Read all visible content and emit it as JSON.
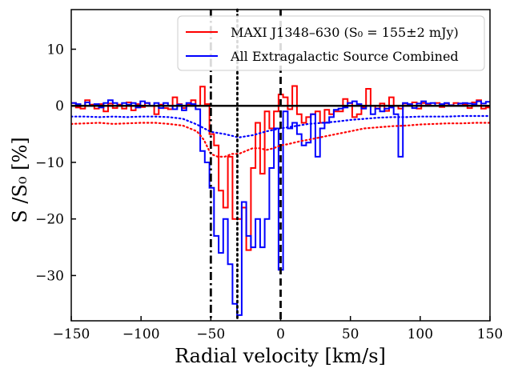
{
  "chart_data": {
    "type": "line",
    "step": true,
    "xlabel": "Radial velocity [km/s]",
    "ylabel": "S /S₀ [%]",
    "xlim": [
      -150,
      150
    ],
    "ylim": [
      -38,
      17
    ],
    "xticks": [
      -150,
      -100,
      -50,
      0,
      50,
      100,
      150
    ],
    "xtick_labels": [
      "−150",
      "−100",
      "−50",
      "0",
      "50",
      "100",
      "150"
    ],
    "yticks": [
      10,
      0,
      -10,
      -20,
      -30
    ],
    "ytick_labels": [
      "10",
      "0",
      "−10",
      "−20",
      "−30"
    ],
    "grid": false,
    "legend_position": "top-right",
    "channel_width": 3.3,
    "series": [
      {
        "name": "MAXI J1348–630 (S₀ = 155±2 mJy)",
        "color": "#ff0000",
        "style": "step",
        "x": [
          -150,
          -146.7,
          -143.4,
          -140.1,
          -136.8,
          -133.5,
          -130.2,
          -126.9,
          -123.6,
          -120.3,
          -117,
          -113.7,
          -110.4,
          -107.1,
          -103.8,
          -100.5,
          -97.2,
          -93.9,
          -90.6,
          -87.3,
          -84,
          -80.7,
          -77.4,
          -74.1,
          -70.8,
          -67.5,
          -64.2,
          -60.9,
          -57.6,
          -54.3,
          -51,
          -47.7,
          -44.4,
          -41.1,
          -37.8,
          -34.5,
          -31.2,
          -27.9,
          -24.6,
          -21.3,
          -18,
          -14.7,
          -11.4,
          -8.1,
          -4.8,
          -1.5,
          1.8,
          5.1,
          8.4,
          11.7,
          15,
          18.3,
          21.6,
          24.9,
          28.2,
          31.5,
          34.8,
          38.1,
          41.4,
          44.7,
          48,
          51.3,
          54.6,
          57.9,
          61.2,
          64.5,
          67.8,
          71.1,
          74.4,
          77.7,
          81,
          84.3,
          87.6,
          90.9,
          94.2,
          97.5,
          100.8,
          104.1,
          107.4,
          110.7,
          114,
          117.3,
          120.6,
          123.9,
          127.2,
          130.5,
          133.8,
          137.1,
          140.4,
          143.7,
          147
        ],
        "y": [
          0.5,
          -0.3,
          -0.5,
          1,
          0.2,
          -0.5,
          0.3,
          -1,
          0.4,
          -0.4,
          0.2,
          -0.5,
          0.6,
          -0.8,
          0.3,
          -0.2,
          0.5,
          0,
          -1.5,
          0.2,
          -0.4,
          -0.6,
          1.5,
          0.3,
          -0.4,
          0.2,
          1,
          0,
          3.4,
          0.3,
          -5,
          -7,
          -15,
          -18,
          -9,
          -20,
          -20,
          -18,
          -25.5,
          -11,
          -3,
          -12,
          -1,
          -4,
          -1,
          2,
          1.5,
          -0.6,
          3.5,
          -1.5,
          -3,
          -2,
          -1.5,
          -1,
          -3,
          -0.7,
          -1.5,
          -1,
          -1,
          1.2,
          0.5,
          -2,
          -1.5,
          -0.3,
          3,
          0,
          -0.5,
          0.4,
          -0.9,
          1.5,
          0,
          -0.5,
          0.4,
          0,
          0.6,
          -0.5,
          0.5,
          0.3,
          0,
          0.5,
          -0.2,
          0.4,
          0,
          0.5,
          0.4,
          0.3,
          -0.4,
          0.6,
          1,
          -0.5,
          -0.3
        ]
      },
      {
        "name": "All Extragalactic Source Combined",
        "color": "#0000ff",
        "style": "step",
        "x": [
          -150,
          -146.7,
          -143.4,
          -140.1,
          -136.8,
          -133.5,
          -130.2,
          -126.9,
          -123.6,
          -120.3,
          -117,
          -113.7,
          -110.4,
          -107.1,
          -103.8,
          -100.5,
          -97.2,
          -93.9,
          -90.6,
          -87.3,
          -84,
          -80.7,
          -77.4,
          -74.1,
          -70.8,
          -67.5,
          -64.2,
          -60.9,
          -57.6,
          -54.3,
          -51,
          -47.7,
          -44.4,
          -41.1,
          -37.8,
          -34.5,
          -31.2,
          -27.9,
          -24.6,
          -21.3,
          -18,
          -14.7,
          -11.4,
          -8.1,
          -4.8,
          -1.5,
          1.8,
          5.1,
          8.4,
          11.7,
          15,
          18.3,
          21.6,
          24.9,
          28.2,
          31.5,
          34.8,
          38.1,
          41.4,
          44.7,
          48,
          51.3,
          54.6,
          57.9,
          61.2,
          64.5,
          67.8,
          71.1,
          74.4,
          77.7,
          81,
          84.3,
          87.6,
          90.9,
          94.2,
          97.5,
          100.8,
          104.1,
          107.4,
          110.7,
          114,
          117.3,
          120.6,
          123.9,
          127.2,
          130.5,
          133.8,
          137.1,
          140.4,
          143.7,
          147
        ],
        "y": [
          0.5,
          0.3,
          0,
          0.6,
          0,
          0.3,
          -0.3,
          0.5,
          1,
          0.5,
          0,
          0.5,
          0.2,
          0.5,
          -0.3,
          0.8,
          0.5,
          0,
          0.5,
          -0.4,
          0.5,
          0,
          -0.6,
          0.2,
          -0.8,
          0.5,
          0.3,
          -0.6,
          -8,
          -10,
          -14.5,
          -23,
          -26,
          -20,
          -28,
          -35,
          -37,
          -17,
          -23,
          -25,
          -20,
          -25,
          -20,
          -11,
          -4,
          -29,
          -1,
          -4,
          -3,
          -5,
          -7,
          -6.5,
          -1.5,
          -9,
          -4,
          -3,
          -2,
          -0.7,
          -0.5,
          -0.3,
          0.5,
          0.8,
          0.3,
          -0.5,
          0,
          -1.5,
          -0.5,
          -1,
          -0.5,
          -0.3,
          -1.5,
          -9,
          0.5,
          0.3,
          -0.4,
          0.4,
          0.8,
          0.4,
          0.5,
          0,
          0.3,
          0.5,
          0.1,
          0,
          0.4,
          0.5,
          0.4,
          0.3,
          0.8,
          0.4,
          0.7
        ]
      },
      {
        "name": "",
        "color": "#ff0000",
        "style": "dotted",
        "x": [
          -150,
          -140,
          -130,
          -120,
          -110,
          -100,
          -90,
          -80,
          -70,
          -60,
          -55,
          -50,
          -45,
          -40,
          -35,
          -30,
          -25,
          -20,
          -15,
          -10,
          -5,
          0,
          5,
          10,
          15,
          20,
          30,
          40,
          50,
          60,
          70,
          80,
          90,
          100,
          110,
          120,
          130,
          140,
          150
        ],
        "y": [
          -3.2,
          -3.1,
          -3,
          -3.2,
          -3.1,
          -3,
          -3,
          -3.2,
          -3.5,
          -4.5,
          -6,
          -8.5,
          -9,
          -9,
          -8.5,
          -8.5,
          -8,
          -7.5,
          -7.5,
          -7.8,
          -7.5,
          -7,
          -6.8,
          -6.5,
          -6.2,
          -6,
          -5.5,
          -5,
          -4.5,
          -4,
          -3.8,
          -3.6,
          -3.5,
          -3.3,
          -3.2,
          -3.1,
          -3.1,
          -3,
          -3
        ]
      },
      {
        "name": "",
        "color": "#0000ff",
        "style": "dotted",
        "x": [
          -150,
          -140,
          -130,
          -120,
          -110,
          -100,
          -90,
          -80,
          -70,
          -60,
          -50,
          -40,
          -30,
          -20,
          -10,
          0,
          10,
          20,
          30,
          40,
          50,
          60,
          70,
          80,
          90,
          100,
          110,
          120,
          130,
          140,
          150
        ],
        "y": [
          -1.9,
          -1.9,
          -2,
          -1.9,
          -2,
          -1.9,
          -1.9,
          -2,
          -2.3,
          -3.3,
          -4.6,
          -5,
          -5.6,
          -5.2,
          -4.5,
          -4,
          -3.6,
          -3.2,
          -3,
          -2.8,
          -2.5,
          -2.3,
          -2.1,
          -2,
          -2,
          -1.9,
          -1.9,
          -1.9,
          -1.8,
          -1.8,
          -1.8
        ]
      }
    ],
    "reference_lines": [
      {
        "x": 0,
        "style": "dashed",
        "color": "#000000"
      },
      {
        "x": -31,
        "style": "dotted",
        "color": "#000000"
      },
      {
        "x": -50,
        "style": "dashdot",
        "color": "#000000"
      }
    ],
    "zero_line": {
      "y": 0,
      "color": "#000000"
    }
  }
}
